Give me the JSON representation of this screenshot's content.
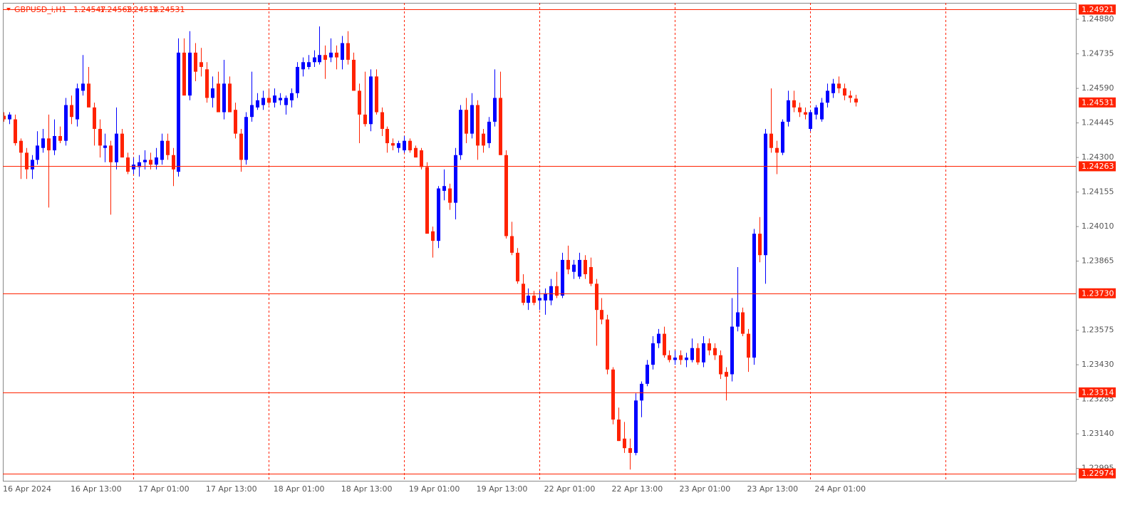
{
  "chart_data": {
    "type": "candlestick",
    "title": "GBPUSD_i,H1",
    "up_color": "#0000ff",
    "down_color": "#ff2200",
    "line_color": "#ff2200",
    "ylim": [
      1.22943,
      1.24949
    ],
    "yticks": [
      {
        "value": 1.2488,
        "label": "1.24880"
      },
      1.24735,
      {
        "value": 1.2459,
        "label": "1.24590"
      },
      1.24445,
      {
        "value": 1.243,
        "label": "1.24300"
      },
      1.24155,
      {
        "value": 1.2401,
        "label": "1.24010"
      },
      1.23865,
      1.23575,
      {
        "value": 1.2343,
        "label": "1.23430"
      },
      1.23285,
      {
        "value": 1.2314,
        "label": "1.23140"
      },
      1.22995
    ],
    "hlines": [
      1.24921,
      1.24263,
      {
        "value": 1.2373,
        "label": "1.23730"
      },
      1.23314,
      1.22974
    ],
    "x_labels": [
      "16 Apr 2024",
      "16 Apr 13:00",
      "17 Apr 01:00",
      "17 Apr 13:00",
      "18 Apr 01:00",
      "18 Apr 13:00",
      "19 Apr 01:00",
      "19 Apr 13:00",
      "22 Apr 01:00",
      "22 Apr 13:00",
      "23 Apr 01:00",
      "23 Apr 13:00",
      "24 Apr 01:00"
    ],
    "candles": [
      [
        1.24475,
        1.2449,
        1.2445,
        1.2446
      ],
      [
        1.2446,
        1.2449,
        1.2444,
        1.2448
      ],
      [
        1.2446,
        1.2448,
        1.2435,
        1.2436
      ],
      [
        1.2437,
        1.2438,
        1.2421,
        1.2432
      ],
      [
        1.2432,
        1.2434,
        1.2421,
        1.2425
      ],
      [
        1.2425,
        1.2431,
        1.2421,
        1.2429
      ],
      [
        1.2429,
        1.2441,
        1.2427,
        1.2435
      ],
      [
        1.2434,
        1.2442,
        1.2432,
        1.2438
      ],
      [
        1.2438,
        1.2448,
        1.2409,
        1.2433
      ],
      [
        1.2433,
        1.2446,
        1.2431,
        1.2439
      ],
      [
        1.2439,
        1.2443,
        1.2436,
        1.2437
      ],
      [
        1.2437,
        1.2455,
        1.2435,
        1.2452
      ],
      [
        1.2452,
        1.2456,
        1.2444,
        1.2447
      ],
      [
        1.2446,
        1.2461,
        1.2443,
        1.2459
      ],
      [
        1.2458,
        1.2473,
        1.2456,
        1.2461
      ],
      [
        1.2461,
        1.2468,
        1.2452,
        1.2451
      ],
      [
        1.2451,
        1.2453,
        1.2435,
        1.2442
      ],
      [
        1.2442,
        1.2446,
        1.243,
        1.2435
      ],
      [
        1.2434,
        1.244,
        1.2428,
        1.2435
      ],
      [
        1.2435,
        1.2437,
        1.2406,
        1.2428
      ],
      [
        1.2428,
        1.2451,
        1.2425,
        1.244
      ],
      [
        1.244,
        1.2442,
        1.243,
        1.243
      ],
      [
        1.243,
        1.2432,
        1.2423,
        1.2424
      ],
      [
        1.2425,
        1.243,
        1.2423,
        1.2427
      ],
      [
        1.2426,
        1.2431,
        1.2422,
        1.2428
      ],
      [
        1.2428,
        1.2433,
        1.2425,
        1.2429
      ],
      [
        1.2429,
        1.2432,
        1.2425,
        1.2427
      ],
      [
        1.2427,
        1.2434,
        1.2425,
        1.243
      ],
      [
        1.2429,
        1.244,
        1.2427,
        1.2437
      ],
      [
        1.2437,
        1.244,
        1.2429,
        1.2431
      ],
      [
        1.2431,
        1.2434,
        1.2418,
        1.2425
      ],
      [
        1.2424,
        1.248,
        1.2422,
        1.2474
      ],
      [
        1.2474,
        1.248,
        1.2456,
        1.2456
      ],
      [
        1.2456,
        1.2483,
        1.2454,
        1.2474
      ],
      [
        1.2474,
        1.2478,
        1.2462,
        1.2466
      ],
      [
        1.247,
        1.2476,
        1.2464,
        1.2468
      ],
      [
        1.2467,
        1.247,
        1.2453,
        1.2455
      ],
      [
        1.2455,
        1.2464,
        1.2451,
        1.2459
      ],
      [
        1.2461,
        1.2466,
        1.2449,
        1.2449
      ],
      [
        1.2449,
        1.2471,
        1.2446,
        1.2461
      ],
      [
        1.2461,
        1.2464,
        1.2449,
        1.2449
      ],
      [
        1.245,
        1.2453,
        1.2438,
        1.244
      ],
      [
        1.244,
        1.2442,
        1.2424,
        1.2429
      ],
      [
        1.2429,
        1.2449,
        1.2427,
        1.2447
      ],
      [
        1.2447,
        1.2466,
        1.2445,
        1.2452
      ],
      [
        1.2451,
        1.2457,
        1.245,
        1.2454
      ],
      [
        1.2452,
        1.2458,
        1.245,
        1.2455
      ],
      [
        1.2455,
        1.2459,
        1.2452,
        1.2453
      ],
      [
        1.2453,
        1.2459,
        1.2451,
        1.2456
      ],
      [
        1.2454,
        1.2457,
        1.2452,
        1.2455
      ],
      [
        1.2452,
        1.2456,
        1.2448,
        1.2455
      ],
      [
        1.2454,
        1.2459,
        1.2451,
        1.2457
      ],
      [
        1.2457,
        1.247,
        1.2455,
        1.2468
      ],
      [
        1.2467,
        1.2472,
        1.2464,
        1.247
      ],
      [
        1.2468,
        1.2473,
        1.2467,
        1.247
      ],
      [
        1.247,
        1.2475,
        1.2468,
        1.2472
      ],
      [
        1.247,
        1.2485,
        1.2469,
        1.2473
      ],
      [
        1.2473,
        1.2477,
        1.2463,
        1.2471
      ],
      [
        1.2472,
        1.248,
        1.247,
        1.2474
      ],
      [
        1.2474,
        1.2477,
        1.2467,
        1.2472
      ],
      [
        1.2471,
        1.2481,
        1.2467,
        1.2478
      ],
      [
        1.2478,
        1.2483,
        1.2469,
        1.2471
      ],
      [
        1.2471,
        1.2474,
        1.2458,
        1.2458
      ],
      [
        1.2458,
        1.2461,
        1.2436,
        1.2448
      ],
      [
        1.2448,
        1.2466,
        1.2443,
        1.2444
      ],
      [
        1.2444,
        1.2467,
        1.2441,
        1.2464
      ],
      [
        1.2464,
        1.2467,
        1.2448,
        1.2449
      ],
      [
        1.2449,
        1.2451,
        1.2439,
        1.2442
      ],
      [
        1.2442,
        1.2443,
        1.2432,
        1.2436
      ],
      [
        1.2436,
        1.2438,
        1.2433,
        1.2435
      ],
      [
        1.2434,
        1.2437,
        1.2432,
        1.2436
      ],
      [
        1.2433,
        1.2439,
        1.2432,
        1.2437
      ],
      [
        1.2437,
        1.2438,
        1.2432,
        1.2433
      ],
      [
        1.2434,
        1.2435,
        1.243,
        1.243
      ],
      [
        1.2433,
        1.2434,
        1.2425,
        1.2426
      ],
      [
        1.2426,
        1.2428,
        1.2399,
        1.2398
      ],
      [
        1.2399,
        1.2401,
        1.2388,
        1.2395
      ],
      [
        1.2395,
        1.2418,
        1.2392,
        1.2417
      ],
      [
        1.2416,
        1.2425,
        1.2412,
        1.2418
      ],
      [
        1.2417,
        1.2419,
        1.2408,
        1.2411
      ],
      [
        1.2411,
        1.2434,
        1.2404,
        1.2431
      ],
      [
        1.2431,
        1.2452,
        1.2429,
        1.245
      ],
      [
        1.245,
        1.2455,
        1.2436,
        1.244
      ],
      [
        1.244,
        1.2457,
        1.2438,
        1.2452
      ],
      [
        1.2452,
        1.2454,
        1.2429,
        1.2435
      ],
      [
        1.244,
        1.2442,
        1.2432,
        1.2435
      ],
      [
        1.2436,
        1.2447,
        1.2434,
        1.2445
      ],
      [
        1.2445,
        1.2467,
        1.2443,
        1.2455
      ],
      [
        1.2455,
        1.2466,
        1.2431,
        1.2431
      ],
      [
        1.2431,
        1.2433,
        1.2396,
        1.2397
      ],
      [
        1.2397,
        1.2403,
        1.2389,
        1.239
      ],
      [
        1.239,
        1.2392,
        1.2377,
        1.2378
      ],
      [
        1.2377,
        1.2381,
        1.2368,
        1.2369
      ],
      [
        1.2369,
        1.2375,
        1.2366,
        1.2372
      ],
      [
        1.2372,
        1.2374,
        1.2368,
        1.2369
      ],
      [
        1.237,
        1.2374,
        1.2366,
        1.2371
      ],
      [
        1.237,
        1.2375,
        1.2364,
        1.2373
      ],
      [
        1.237,
        1.2379,
        1.2368,
        1.2376
      ],
      [
        1.2376,
        1.2382,
        1.2371,
        1.2372
      ],
      [
        1.2372,
        1.239,
        1.2371,
        1.2387
      ],
      [
        1.2387,
        1.2393,
        1.2381,
        1.2383
      ],
      [
        1.2382,
        1.2387,
        1.2379,
        1.2385
      ],
      [
        1.238,
        1.239,
        1.2379,
        1.2387
      ],
      [
        1.2387,
        1.2389,
        1.2379,
        1.2381
      ],
      [
        1.2384,
        1.2388,
        1.2376,
        1.2377
      ],
      [
        1.2377,
        1.2379,
        1.2351,
        1.2366
      ],
      [
        1.2366,
        1.2371,
        1.236,
        1.2362
      ],
      [
        1.2362,
        1.2364,
        1.2339,
        1.2341
      ],
      [
        1.2341,
        1.2342,
        1.2318,
        1.232
      ],
      [
        1.232,
        1.2325,
        1.2311,
        1.2311
      ],
      [
        1.2312,
        1.2319,
        1.2306,
        1.2308
      ],
      [
        1.2308,
        1.2312,
        1.2299,
        1.2306
      ],
      [
        1.2306,
        1.2331,
        1.2305,
        1.2328
      ],
      [
        1.2328,
        1.2336,
        1.2321,
        1.2335
      ],
      [
        1.2335,
        1.2345,
        1.2334,
        1.2343
      ],
      [
        1.2343,
        1.2355,
        1.2341,
        1.2352
      ],
      [
        1.2352,
        1.2358,
        1.235,
        1.2356
      ],
      [
        1.2356,
        1.2359,
        1.2346,
        1.2347
      ],
      [
        1.2347,
        1.2349,
        1.2344,
        1.2345
      ],
      [
        1.2345,
        1.2349,
        1.2343,
        1.2346
      ],
      [
        1.2347,
        1.2349,
        1.2343,
        1.2345
      ],
      [
        1.2345,
        1.2348,
        1.2342,
        1.2346
      ],
      [
        1.2345,
        1.2354,
        1.2344,
        1.235
      ],
      [
        1.235,
        1.2352,
        1.2343,
        1.2344
      ],
      [
        1.2344,
        1.2355,
        1.2342,
        1.2352
      ],
      [
        1.2352,
        1.2354,
        1.2347,
        1.2349
      ],
      [
        1.235,
        1.2352,
        1.2345,
        1.2347
      ],
      [
        1.2347,
        1.2349,
        1.2337,
        1.2339
      ],
      [
        1.234,
        1.2342,
        1.2328,
        1.2338
      ],
      [
        1.2339,
        1.2371,
        1.2336,
        1.2359
      ],
      [
        1.2359,
        1.2384,
        1.2357,
        1.2365
      ],
      [
        1.2365,
        1.2367,
        1.2355,
        1.2356
      ],
      [
        1.2356,
        1.2358,
        1.234,
        1.2346
      ],
      [
        1.2346,
        1.24,
        1.2343,
        1.2398
      ],
      [
        1.2398,
        1.2405,
        1.2386,
        1.2389
      ],
      [
        1.2389,
        1.2442,
        1.2377,
        1.244
      ],
      [
        1.244,
        1.2459,
        1.2432,
        1.2434
      ],
      [
        1.2434,
        1.2437,
        1.2423,
        1.2432
      ],
      [
        1.2432,
        1.2446,
        1.2431,
        1.2445
      ],
      [
        1.2445,
        1.2458,
        1.2443,
        1.2454
      ],
      [
        1.2454,
        1.2458,
        1.2449,
        1.2451
      ],
      [
        1.2451,
        1.2453,
        1.2447,
        1.2449
      ],
      [
        1.2449,
        1.2451,
        1.2446,
        1.2448
      ],
      [
        1.2442,
        1.245,
        1.2441,
        1.2449
      ],
      [
        1.2448,
        1.2452,
        1.2446,
        1.2451
      ],
      [
        1.2446,
        1.2455,
        1.2445,
        1.2453
      ],
      [
        1.2453,
        1.2461,
        1.2451,
        1.2458
      ],
      [
        1.2457,
        1.2463,
        1.2455,
        1.2461
      ],
      [
        1.2461,
        1.2464,
        1.2457,
        1.2459
      ],
      [
        1.2459,
        1.2461,
        1.2454,
        1.2456
      ],
      [
        1.2456,
        1.2458,
        1.2453,
        1.2455
      ],
      [
        1.24547,
        1.24563,
        1.24514,
        1.24531
      ]
    ]
  }
}
